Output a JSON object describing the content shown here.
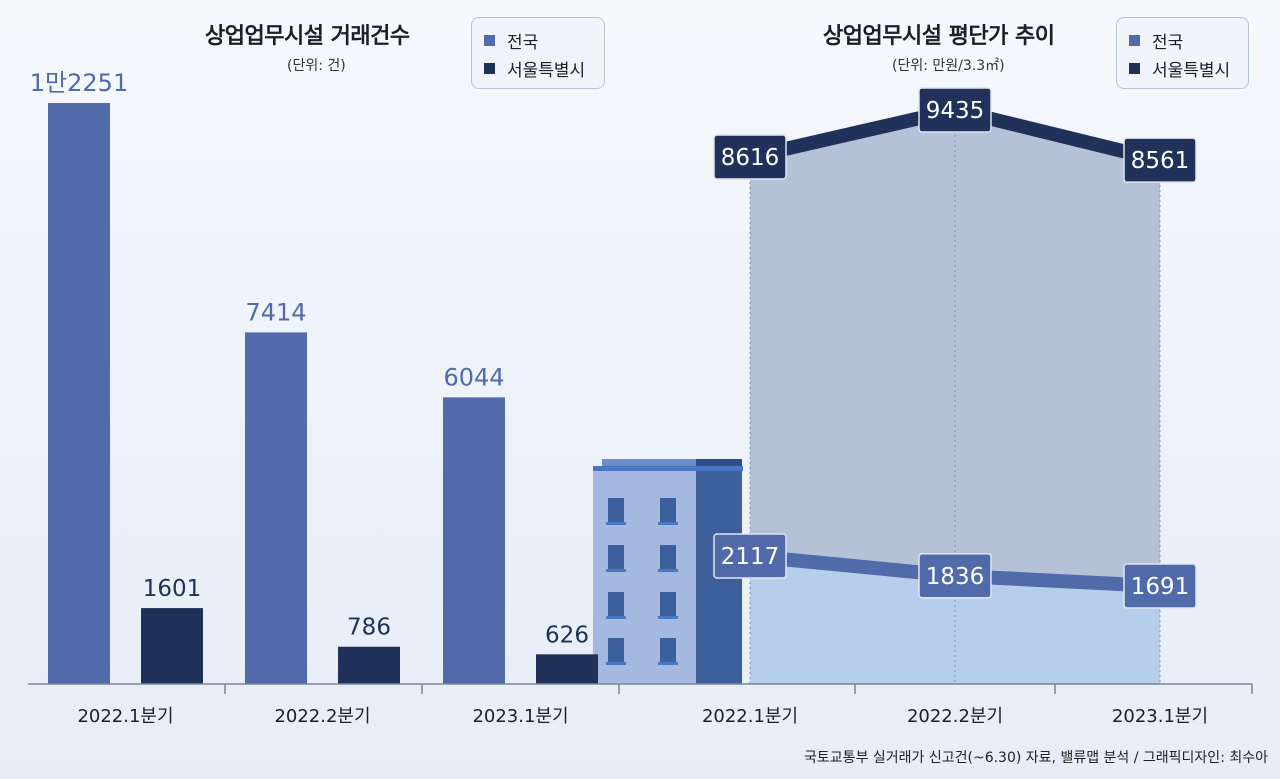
{
  "colors": {
    "nationwide": "#516aa9",
    "seoul": "#21325a",
    "label_nationwide": "#516aa9",
    "label_seoul": "#21325a",
    "area_top": "#aebbd1",
    "area_bottom": "#b3caeb"
  },
  "left": {
    "title": "상업업무시설 거래건수",
    "unit": "(단위: 건)"
  },
  "right": {
    "title": "상업업무시설 평단가 추이",
    "unit": "(단위: 만원/3.3㎡)"
  },
  "legend": {
    "nationwide": "전국",
    "seoul": "서울특별시"
  },
  "source": "국토교통부 실거래가 신고건(~6.30) 자료, 밸류맵 분석 / 그래픽디자인: 최수아",
  "chart_data": [
    {
      "type": "bar",
      "title": "상업업무시설 거래건수",
      "subtitle": "(단위: 건)",
      "categories": [
        "2022.1분기",
        "2022.2분기",
        "2023.1분기"
      ],
      "series": [
        {
          "name": "전국",
          "values": [
            12251,
            7414,
            6044
          ],
          "labels": [
            "1만2251",
            "7414",
            "6044"
          ]
        },
        {
          "name": "서울특별시",
          "values": [
            1601,
            786,
            626
          ],
          "labels": [
            "1601",
            "786",
            "626"
          ]
        }
      ],
      "legend": "top-right"
    },
    {
      "type": "line",
      "title": "상업업무시설 평단가 추이",
      "subtitle": "(단위: 만원/3.3㎡)",
      "categories": [
        "2022.1분기",
        "2022.2분기",
        "2023.1분기"
      ],
      "series": [
        {
          "name": "서울특별시",
          "values": [
            8616,
            9435,
            8561
          ],
          "labels": [
            "8616",
            "9435",
            "8561"
          ]
        },
        {
          "name": "전국",
          "values": [
            2117,
            1836,
            1691
          ],
          "labels": [
            "2117",
            "1836",
            "1691"
          ]
        }
      ],
      "legend": "top-right"
    }
  ]
}
